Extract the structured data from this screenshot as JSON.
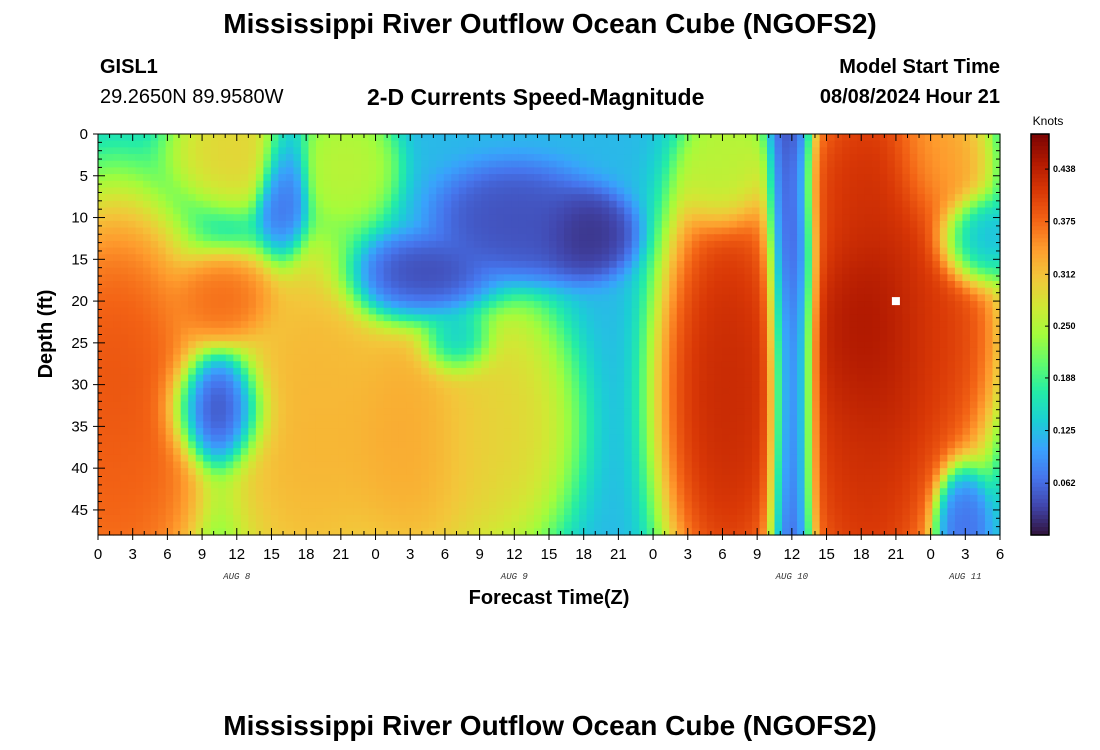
{
  "header": {
    "title": "Mississippi River Outflow Ocean Cube (NGOFS2)",
    "station_id": "GISL1",
    "station_coords": "29.2650N  89.9580W",
    "plot_title": "2-D Currents Speed-Magnitude",
    "model_start_label": "Model Start Time",
    "model_start_value": "08/08/2024 Hour 21"
  },
  "footer": {
    "title": "Mississippi River Outflow Ocean Cube (NGOFS2)"
  },
  "chart_data": {
    "type": "heatmap",
    "xlabel": "Forecast Time(Z)",
    "ylabel": "Depth (ft)",
    "x_tick_labels": [
      "0",
      "3",
      "6",
      "9",
      "12",
      "15",
      "18",
      "21",
      "0",
      "3",
      "6",
      "9",
      "12",
      "15",
      "18",
      "21",
      "0",
      "3",
      "6",
      "9",
      "12",
      "15",
      "18",
      "21",
      "0",
      "3",
      "6"
    ],
    "x_hours_since_start": [
      -21,
      -18,
      -15,
      -12,
      -9,
      -6,
      -3,
      0,
      3,
      6,
      9,
      12,
      15,
      18,
      21,
      24,
      27,
      30,
      33,
      36,
      39,
      42,
      45,
      48,
      51,
      54,
      57
    ],
    "date_labels": [
      {
        "label": "AUG 8",
        "hour": -9
      },
      {
        "label": "AUG 9",
        "hour": 15
      },
      {
        "label": "AUG 10",
        "hour": 39
      },
      {
        "label": "AUG 11",
        "hour": 54
      }
    ],
    "x_range_hours": [
      -21,
      57
    ],
    "y_ticks": [
      0,
      5,
      10,
      15,
      20,
      25,
      30,
      35,
      40,
      45
    ],
    "y_range_ft": [
      0,
      48
    ],
    "colorbar": {
      "label": "Knots",
      "ticks": [
        "0.062",
        "0.125",
        "0.188",
        "0.250",
        "0.312",
        "0.375",
        "0.438"
      ],
      "tick_values": [
        0.062,
        0.125,
        0.188,
        0.25,
        0.312,
        0.375,
        0.438
      ],
      "range": [
        0.0,
        0.48
      ],
      "colormap": [
        "#30123b",
        "#4145ab",
        "#4675ed",
        "#39a2fc",
        "#1bcfd4",
        "#24eca6",
        "#61fc6c",
        "#a4fc3b",
        "#d1e834",
        "#f3c63a",
        "#fe9b2d",
        "#f36315",
        "#d93806",
        "#b11901",
        "#7a0403"
      ]
    },
    "current_marker": {
      "hour": 48,
      "depth_ft": 20
    },
    "features": [
      {
        "hour": -19.5,
        "depth": 31,
        "value": 0.4,
        "sh": 3.5,
        "sd": 10
      },
      {
        "hour": -19.5,
        "depth": 43,
        "value": 0.38,
        "sh": 3,
        "sd": 6
      },
      {
        "hour": -9,
        "depth": 2,
        "value": 0.3,
        "sh": 2.5,
        "sd": 3
      },
      {
        "hour": -10,
        "depth": 20,
        "value": 0.38,
        "sh": 2.2,
        "sd": 2.5
      },
      {
        "hour": -10.5,
        "depth": 33,
        "value": 0.02,
        "sh": 2,
        "sd": 3
      },
      {
        "hour": -3,
        "depth": 36,
        "value": 0.33,
        "sh": 3.2,
        "sd": 10
      },
      {
        "hour": -2,
        "depth": 28,
        "value": 0.32,
        "sh": 2.2,
        "sd": 5
      },
      {
        "hour": 0.5,
        "depth": 4,
        "value": 0.26,
        "sh": 1.8,
        "sd": 3
      },
      {
        "hour": -5,
        "depth": 6,
        "value": 0.06,
        "sh": 1,
        "sd": 4
      },
      {
        "hour": 7,
        "depth": 18,
        "value": 0.02,
        "sh": 3,
        "sd": 2.5
      },
      {
        "hour": 6,
        "depth": 36,
        "value": 0.34,
        "sh": 3.5,
        "sd": 8
      },
      {
        "hour": 13,
        "depth": 35,
        "value": 0.3,
        "sh": 3,
        "sd": 7
      },
      {
        "hour": 15,
        "depth": 11,
        "value": 0.04,
        "sh": 3,
        "sd": 3
      },
      {
        "hour": 21,
        "depth": 12,
        "value": 0.02,
        "sh": 1.8,
        "sd": 2.2
      },
      {
        "hour": 10,
        "depth": 25,
        "value": 0.09,
        "sh": 1.5,
        "sd": 2
      },
      {
        "hour": 33.5,
        "depth": 31,
        "value": 0.44,
        "sh": 2.6,
        "sd": 12
      },
      {
        "hour": 33,
        "depth": 5,
        "value": 0.25,
        "sh": 1.5,
        "sd": 3
      },
      {
        "hour": 39,
        "depth": 25,
        "value": 0.02,
        "sh": 0.9,
        "sd": 25
      },
      {
        "hour": 46,
        "depth": 6,
        "value": 0.43,
        "sh": 3,
        "sd": 6
      },
      {
        "hour": 47,
        "depth": 24,
        "value": 0.47,
        "sh": 3.6,
        "sd": 8
      },
      {
        "hour": 45.5,
        "depth": 40,
        "value": 0.43,
        "sh": 2.8,
        "sd": 9
      },
      {
        "hour": 51,
        "depth": 24,
        "value": 0.4,
        "sh": 2.5,
        "sd": 8
      },
      {
        "hour": 51.5,
        "depth": 3,
        "value": 0.34,
        "sh": 2,
        "sd": 4
      },
      {
        "hour": 54.5,
        "depth": 13,
        "value": 0.1,
        "sh": 1.5,
        "sd": 2.5
      },
      {
        "hour": 53.5,
        "depth": 46,
        "value": 0.06,
        "sh": 1,
        "sd": 3
      }
    ]
  }
}
